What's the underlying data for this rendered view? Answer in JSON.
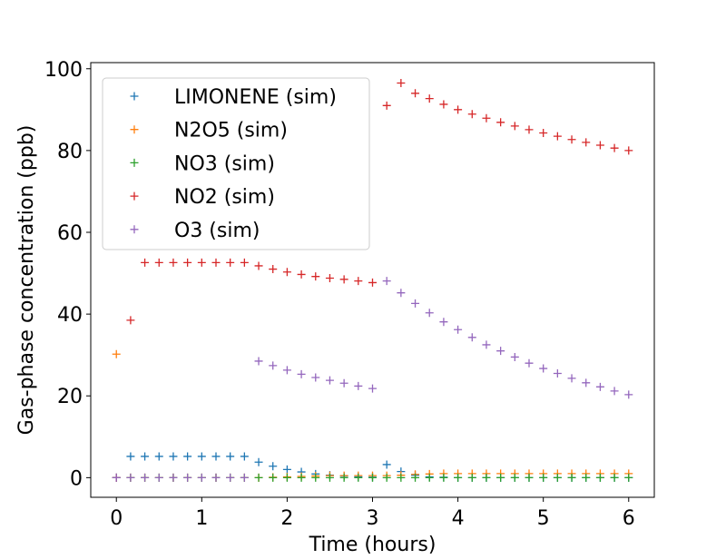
{
  "chart_data": {
    "type": "scatter",
    "title": "",
    "xlabel": "Time (hours)",
    "ylabel": "Gas-phase concentration (ppb)",
    "xlim": [
      -0.3,
      6.3
    ],
    "ylim": [
      -4.8,
      101.5
    ],
    "xticks": [
      0,
      1,
      2,
      3,
      4,
      5,
      6
    ],
    "yticks": [
      0,
      20,
      40,
      60,
      80,
      100
    ],
    "grid": false,
    "legend": "top-left",
    "marker": "+",
    "x": [
      0,
      0.1667,
      0.3333,
      0.5,
      0.6667,
      0.8333,
      1,
      1.1667,
      1.3333,
      1.5,
      1.6667,
      1.8333,
      2,
      2.1667,
      2.3333,
      2.5,
      2.6667,
      2.8333,
      3,
      3.1667,
      3.3333,
      3.5,
      3.6667,
      3.8333,
      4,
      4.1667,
      4.3333,
      4.5,
      4.6667,
      4.8333,
      5,
      5.1667,
      5.3333,
      5.5,
      5.6667,
      5.8333,
      6
    ],
    "series": [
      {
        "name": "LIMONENE (sim)",
        "color": "#1f77b4",
        "values": [
          0,
          5.2,
          5.2,
          5.2,
          5.2,
          5.2,
          5.2,
          5.2,
          5.2,
          5.2,
          3.8,
          2.8,
          2.0,
          1.4,
          0.9,
          0.6,
          0.4,
          0.2,
          0.1,
          3.2,
          1.5,
          0.6,
          0.2,
          0.1,
          0,
          0,
          0,
          0,
          0,
          0,
          0,
          0,
          0,
          0,
          0,
          0,
          0
        ]
      },
      {
        "name": "N2O5 (sim)",
        "color": "#ff7f0e",
        "values": [
          30.2,
          0,
          0,
          0,
          0,
          0,
          0,
          0,
          0,
          0,
          0,
          0.1,
          0.2,
          0.3,
          0.4,
          0.5,
          0.5,
          0.5,
          0.5,
          0.5,
          0.6,
          0.8,
          0.9,
          1.0,
          1.0,
          1.0,
          1.0,
          1.0,
          1.0,
          1.0,
          1.0,
          1.0,
          1.0,
          1.0,
          1.0,
          1.0,
          1.0
        ]
      },
      {
        "name": "NO3 (sim)",
        "color": "#2ca02c",
        "values": [
          0,
          0,
          0,
          0,
          0,
          0,
          0,
          0,
          0,
          0,
          0,
          0,
          0,
          0,
          0,
          0,
          0,
          0,
          0,
          0,
          0,
          0,
          0,
          0,
          0,
          0,
          0,
          0,
          0,
          0,
          0,
          0,
          0,
          0,
          0,
          0,
          0
        ]
      },
      {
        "name": "NO2 (sim)",
        "color": "#d62728",
        "values": [
          0,
          38.5,
          52.6,
          52.6,
          52.6,
          52.6,
          52.6,
          52.6,
          52.6,
          52.6,
          51.8,
          51.0,
          50.3,
          49.7,
          49.2,
          48.8,
          48.5,
          48.1,
          47.7,
          91.0,
          96.5,
          94.0,
          92.7,
          91.3,
          90.0,
          88.9,
          87.9,
          86.9,
          86.0,
          85.1,
          84.3,
          83.5,
          82.7,
          82.0,
          81.3,
          80.6,
          80.0
        ]
      },
      {
        "name": "O3 (sim)",
        "color": "#9467bd",
        "values": [
          0,
          0,
          0,
          0,
          0,
          0,
          0,
          0,
          0,
          0,
          28.5,
          27.4,
          26.3,
          25.3,
          24.5,
          23.8,
          23.1,
          22.4,
          21.8,
          48.1,
          45.2,
          42.6,
          40.3,
          38.1,
          36.2,
          34.3,
          32.5,
          31.0,
          29.5,
          28.0,
          26.7,
          25.5,
          24.3,
          23.2,
          22.2,
          21.2,
          20.3
        ]
      }
    ]
  }
}
